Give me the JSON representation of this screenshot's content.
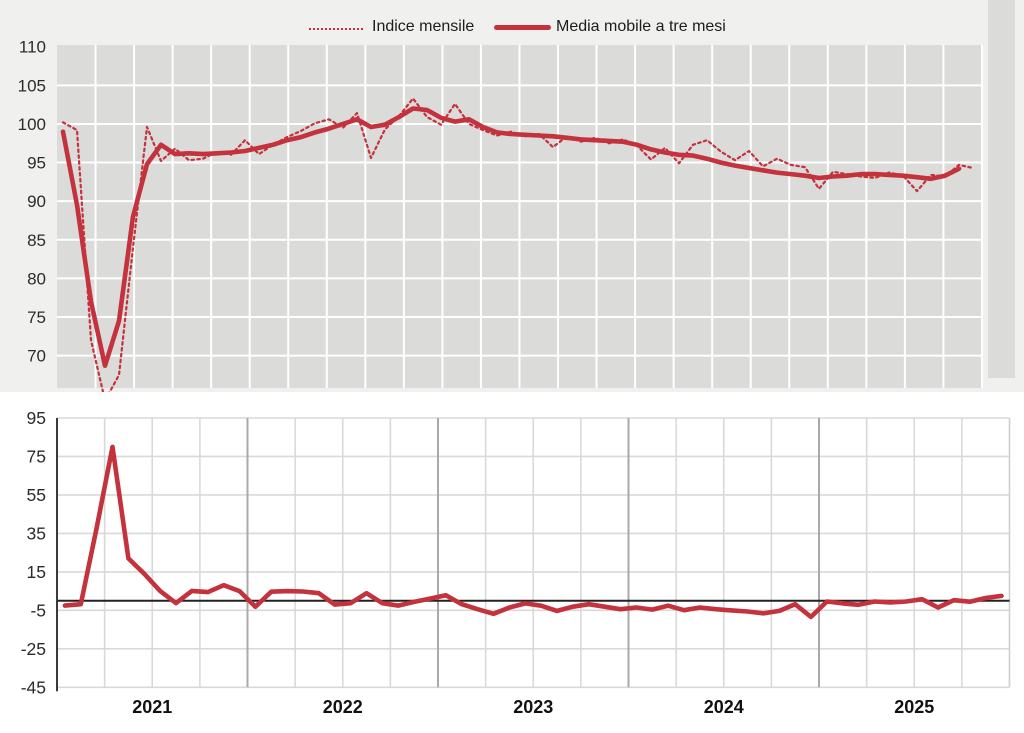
{
  "legend": {
    "items": [
      {
        "label": "Indice mensile",
        "marker": "dotted-line-sample"
      },
      {
        "label": "Media mobile a tre mesi",
        "marker": "solid-line-sample"
      }
    ]
  },
  "colors": {
    "series_red": "#c4323d",
    "top_plot_background": "#dbdbda",
    "top_grid": "#ffffff",
    "top_page_band": "#f0f0ee",
    "bottom_grid_light": "#d9d9d9",
    "bottom_grid_year": "#a9a9a9",
    "zero_line": "#222222",
    "axis_line": "#3a3a3a",
    "tick_label": "#2b2b2b",
    "year_label": "#111111"
  },
  "chart_data": [
    {
      "type": "line",
      "title": "",
      "xlabel": "",
      "ylabel": "",
      "ylim": [
        66,
        110.3
      ],
      "y_ticks": [
        110,
        105,
        100,
        95,
        90,
        85,
        80,
        75,
        70
      ],
      "x_tick_labels": [],
      "grid": "white on gray panel",
      "legend_position": "top-center",
      "series": [
        {
          "name": "Indice mensile",
          "style": "dotted",
          "values": [
            100.2,
            99.2,
            72.0,
            64.2,
            67.5,
            84.0,
            99.6,
            95.2,
            96.8,
            95.3,
            95.5,
            96.4,
            96.0,
            97.9,
            96.1,
            97.3,
            98.3,
            99.1,
            100.1,
            100.6,
            99.5,
            101.4,
            95.6,
            99.3,
            101.0,
            103.3,
            100.9,
            99.9,
            102.6,
            100.0,
            99.2,
            98.5,
            99.0,
            98.4,
            98.7,
            97.0,
            98.4,
            97.7,
            98.2,
            97.5,
            98.0,
            97.2,
            95.4,
            96.9,
            94.9,
            97.3,
            97.9,
            96.4,
            95.3,
            96.5,
            94.5,
            95.5,
            94.7,
            94.4,
            91.6,
            93.8,
            93.5,
            93.2,
            93.0,
            93.7,
            93.3,
            91.3,
            93.4,
            93.2,
            94.7,
            94.3
          ]
        },
        {
          "name": "Media mobile a tre mesi",
          "style": "solid",
          "values": [
            99.0,
            89.5,
            77.0,
            68.7,
            74.5,
            88.0,
            94.8,
            97.3,
            96.1,
            96.2,
            96.1,
            96.2,
            96.3,
            96.5,
            96.9,
            97.3,
            97.9,
            98.3,
            98.9,
            99.4,
            100.0,
            100.6,
            99.6,
            99.9,
            100.9,
            102.0,
            101.8,
            100.8,
            100.3,
            100.6,
            99.6,
            98.9,
            98.7,
            98.6,
            98.5,
            98.4,
            98.2,
            98.0,
            97.9,
            97.8,
            97.7,
            97.3,
            96.7,
            96.3,
            96.0,
            95.9,
            95.5,
            95.0,
            94.6,
            94.3,
            94.0,
            93.7,
            93.5,
            93.3,
            93.0,
            93.2,
            93.3,
            93.5,
            93.5,
            93.4,
            93.3,
            93.1,
            92.9,
            93.3,
            94.2,
            null
          ]
        }
      ]
    },
    {
      "type": "line",
      "title": "",
      "xlabel": "",
      "ylabel": "",
      "ylim": [
        -45,
        95
      ],
      "y_ticks": [
        95,
        75,
        55,
        35,
        15,
        -5,
        -25,
        -45
      ],
      "x_year_labels": [
        "2021",
        "2022",
        "2023",
        "2024",
        "2025"
      ],
      "grid": "light gray, darker lines at year boundaries, quarterly spacing",
      "zero_line": true,
      "series": [
        {
          "name": "",
          "style": "solid",
          "values": [
            -2.5,
            -1.8,
            38,
            80,
            22,
            14,
            5,
            -1.2,
            5.1,
            4.5,
            8.1,
            5.0,
            -3.1,
            4.7,
            5.0,
            4.8,
            3.9,
            -2.0,
            -1.3,
            3.9,
            -1.3,
            -2.5,
            -0.6,
            1.1,
            2.9,
            -1.8,
            -4.4,
            -6.8,
            -3.5,
            -1.4,
            -2.6,
            -5.3,
            -3.1,
            -1.8,
            -3.1,
            -4.4,
            -3.5,
            -4.6,
            -2.6,
            -4.9,
            -3.5,
            -4.4,
            -5.0,
            -5.6,
            -6.6,
            -5.3,
            -1.8,
            -8.4,
            -0.4,
            -1.4,
            -2.1,
            -0.4,
            -0.9,
            -0.4,
            0.8,
            -3.5,
            0.3,
            -0.5,
            1.4,
            2.5
          ]
        }
      ]
    }
  ]
}
